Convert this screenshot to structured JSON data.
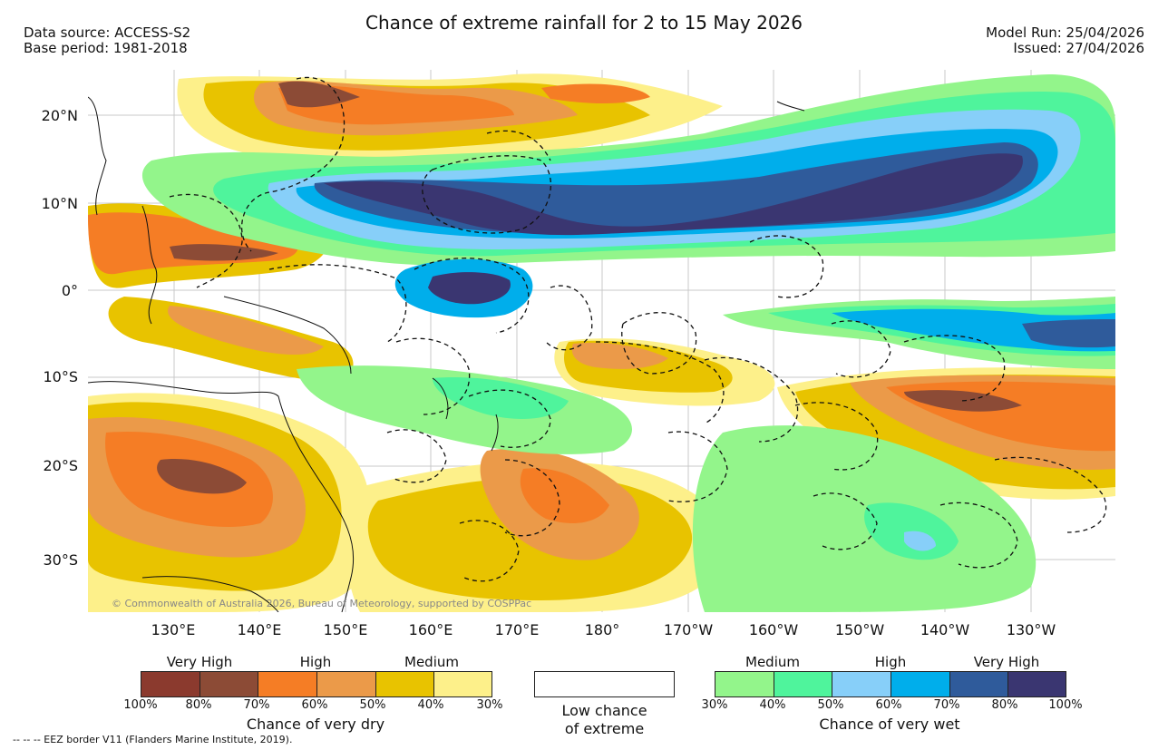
{
  "header": {
    "source": "Data source: ACCESS-S2",
    "base_period": "Base period: 1981-2018",
    "title": "Chance of extreme rainfall for 2 to 15 May 2026",
    "model_run": "Model Run: 25/04/2026",
    "issued": "Issued: 27/04/2026"
  },
  "map": {
    "copyright": "© Commonwealth of Australia 2026, Bureau of Meteorology, supported by COSPPac",
    "lat_labels": [
      "20°N",
      "10°N",
      "0°",
      "10°S",
      "20°S",
      "30°S"
    ],
    "lon_labels": [
      "130°E",
      "140°E",
      "150°E",
      "160°E",
      "170°E",
      "180°",
      "170°W",
      "160°W",
      "150°W",
      "140°W",
      "130°W"
    ]
  },
  "legend": {
    "dry": {
      "levels": [
        "Very High",
        "High",
        "Medium"
      ],
      "colors": [
        "#8b3a2e",
        "#8c4b36",
        "#f57d25",
        "#eb9a49",
        "#e8c300",
        "#fdf08a"
      ],
      "ticks": [
        "100%",
        "80%",
        "70%",
        "60%",
        "50%",
        "40%",
        "30%"
      ],
      "caption": "Chance of very dry"
    },
    "low": {
      "caption_line1": "Low chance",
      "caption_line2": "of extreme"
    },
    "wet": {
      "levels": [
        "Medium",
        "High",
        "Very High"
      ],
      "colors": [
        "#93f58b",
        "#4ff49c",
        "#87cff9",
        "#00aeeb",
        "#2f5b9b",
        "#3a3671"
      ],
      "ticks": [
        "30%",
        "40%",
        "50%",
        "60%",
        "70%",
        "80%",
        "100%"
      ],
      "caption": "Chance of very wet"
    }
  },
  "footer": {
    "eez": "-- -- -- EEZ border V11 (Flanders Marine Institute, 2019)."
  }
}
